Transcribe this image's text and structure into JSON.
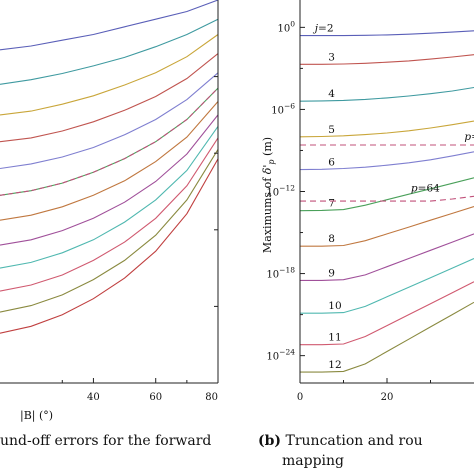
{
  "captions": {
    "left": "und-off errors for the forward",
    "right_label": "(b)",
    "right_line1": "Truncation and rou",
    "right_line2": "mapping"
  },
  "chart_data": [
    {
      "type": "line",
      "xlabel": "|B| (°)",
      "ylabel": "",
      "xlim": [
        10,
        80
      ],
      "ylim": [
        0,
        10
      ],
      "x_ticks": [
        40,
        60,
        80
      ],
      "x_tick_labels": [
        "40",
        "60",
        "80"
      ],
      "x": [
        10,
        20,
        30,
        40,
        50,
        60,
        70,
        80
      ],
      "series": [
        {
          "color": "#5a5fb8",
          "values": [
            8.7,
            8.8,
            8.95,
            9.1,
            9.3,
            9.5,
            9.7,
            10.0
          ]
        },
        {
          "color": "#3f9aa0",
          "values": [
            7.8,
            7.92,
            8.08,
            8.28,
            8.5,
            8.78,
            9.1,
            9.5
          ]
        },
        {
          "color": "#c9a63a",
          "values": [
            7.0,
            7.1,
            7.28,
            7.5,
            7.78,
            8.1,
            8.52,
            9.1
          ]
        },
        {
          "color": "#c05550",
          "values": [
            6.3,
            6.4,
            6.58,
            6.82,
            7.12,
            7.48,
            7.95,
            8.6
          ]
        },
        {
          "color": "#7f7fd0",
          "values": [
            5.6,
            5.72,
            5.9,
            6.15,
            6.48,
            6.88,
            7.4,
            8.1
          ]
        },
        {
          "color": "#4aa05a",
          "values": [
            4.9,
            5.02,
            5.22,
            5.5,
            5.86,
            6.3,
            6.88,
            7.7
          ]
        },
        {
          "color": "#c07840",
          "values": [
            4.25,
            4.38,
            4.6,
            4.9,
            5.28,
            5.78,
            6.42,
            7.35
          ]
        },
        {
          "color": "#a0509a",
          "values": [
            3.6,
            3.74,
            3.98,
            4.3,
            4.72,
            5.26,
            5.98,
            7.0
          ]
        },
        {
          "color": "#50b8b0",
          "values": [
            3.0,
            3.15,
            3.4,
            3.74,
            4.2,
            4.78,
            5.55,
            6.7
          ]
        },
        {
          "color": "#d05a70",
          "values": [
            2.4,
            2.56,
            2.82,
            3.2,
            3.68,
            4.3,
            5.15,
            6.4
          ]
        },
        {
          "color": "#8a8a40",
          "values": [
            1.85,
            2.02,
            2.3,
            2.7,
            3.2,
            3.86,
            4.78,
            6.1
          ]
        },
        {
          "color": "#c04040",
          "values": [
            1.3,
            1.48,
            1.78,
            2.2,
            2.74,
            3.44,
            4.42,
            5.85
          ]
        }
      ],
      "dashed_series": [
        {
          "color": "#c0507a",
          "values": [
            4.9,
            5.02,
            5.22,
            5.5,
            5.86,
            6.3,
            6.88,
            7.7
          ]
        }
      ]
    },
    {
      "type": "line",
      "ylabel": "Maximums of δ'p (m)",
      "xlim": [
        0,
        40
      ],
      "ylim_log10": [
        -26,
        2
      ],
      "x_ticks": [
        0,
        20
      ],
      "x_tick_labels": [
        "0",
        "20"
      ],
      "y_ticks": [
        0,
        -6,
        -12,
        -18,
        -24
      ],
      "y_tick_labels": [
        {
          "base": "10",
          "exp": "0"
        },
        {
          "base": "10",
          "exp": "−6"
        },
        {
          "base": "10",
          "exp": "−12"
        },
        {
          "base": "10",
          "exp": "−18"
        },
        {
          "base": "10",
          "exp": "−24"
        }
      ],
      "x": [
        0,
        5,
        10,
        15,
        20,
        25,
        30,
        35,
        40
      ],
      "series": [
        {
          "label": "j=2",
          "color": "#5a5fb8",
          "values": [
            -0.6,
            -0.6,
            -0.6,
            -0.58,
            -0.55,
            -0.5,
            -0.43,
            -0.35,
            -0.25
          ]
        },
        {
          "label": "3",
          "color": "#c05550",
          "values": [
            -2.7,
            -2.7,
            -2.68,
            -2.63,
            -2.55,
            -2.45,
            -2.32,
            -2.17,
            -2.0
          ]
        },
        {
          "label": "4",
          "color": "#3f9aa0",
          "values": [
            -5.4,
            -5.38,
            -5.34,
            -5.27,
            -5.16,
            -5.02,
            -4.85,
            -4.65,
            -4.4
          ]
        },
        {
          "label": "5",
          "color": "#c9a63a",
          "values": [
            -8.0,
            -7.98,
            -7.93,
            -7.84,
            -7.72,
            -7.56,
            -7.36,
            -7.12,
            -6.85
          ]
        },
        {
          "label": "6",
          "color": "#7f7fd0",
          "values": [
            -10.4,
            -10.38,
            -10.32,
            -10.22,
            -10.08,
            -9.9,
            -9.68,
            -9.4,
            -9.1
          ]
        },
        {
          "label": "7",
          "color": "#4aa05a",
          "values": [
            -13.4,
            -13.38,
            -13.32,
            -13.0,
            -12.6,
            -12.2,
            -11.8,
            -11.4,
            -11.0
          ]
        },
        {
          "label": "8",
          "color": "#c07840",
          "values": [
            -16.0,
            -16.0,
            -15.95,
            -15.6,
            -15.1,
            -14.6,
            -14.1,
            -13.6,
            -13.1
          ]
        },
        {
          "label": "9",
          "color": "#a0509a",
          "values": [
            -18.5,
            -18.5,
            -18.45,
            -18.1,
            -17.5,
            -16.9,
            -16.3,
            -15.7,
            -15.1
          ]
        },
        {
          "label": "10",
          "color": "#50b8b0",
          "values": [
            -20.9,
            -20.9,
            -20.85,
            -20.4,
            -19.7,
            -19.0,
            -18.3,
            -17.6,
            -16.9
          ]
        },
        {
          "label": "11",
          "color": "#d05a70",
          "values": [
            -23.2,
            -23.2,
            -23.15,
            -22.6,
            -21.8,
            -21.0,
            -20.2,
            -19.4,
            -18.6
          ]
        },
        {
          "label": "12",
          "color": "#8a8a40",
          "values": [
            -25.2,
            -25.2,
            -25.15,
            -24.6,
            -23.7,
            -22.8,
            -21.9,
            -21.0,
            -20.1
          ]
        }
      ],
      "dashed_series": [
        {
          "label": "p=",
          "color": "#c0507a",
          "values": [
            -8.6,
            -8.6,
            -8.6,
            -8.6,
            -8.6,
            -8.6,
            -8.6,
            -8.6,
            -8.6
          ]
        },
        {
          "label": "p=64",
          "color": "#c0507a",
          "values": [
            -12.7,
            -12.7,
            -12.7,
            -12.7,
            -12.7,
            -12.7,
            -12.7,
            -12.55,
            -12.35
          ]
        }
      ]
    }
  ]
}
